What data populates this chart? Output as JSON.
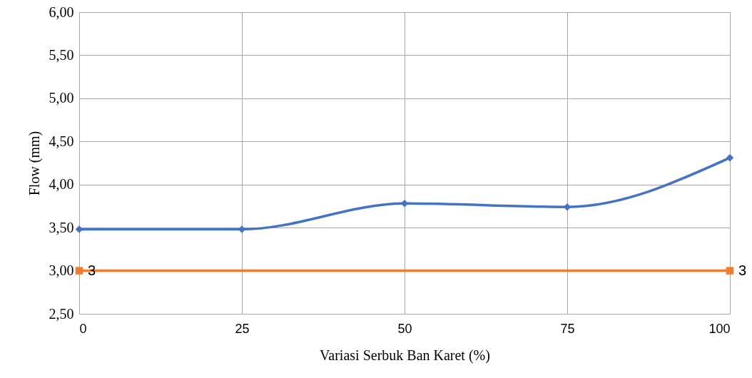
{
  "chart_data": {
    "type": "line",
    "xlabel": "Variasi Serbuk Ban Karet (%)",
    "ylabel": "Flow (mm)",
    "xlim": [
      0,
      100
    ],
    "xticks": [
      0,
      25,
      50,
      75,
      100
    ],
    "ylim": [
      2.5,
      6
    ],
    "yticks": [
      {
        "value": 2.5,
        "label": "2,50"
      },
      {
        "value": 3,
        "label": "3,00"
      },
      {
        "value": 3.5,
        "label": "3,50"
      },
      {
        "value": 4,
        "label": "4,00"
      },
      {
        "value": 4.5,
        "label": "4,50"
      },
      {
        "value": 5,
        "label": "5,00"
      },
      {
        "value": 5.5,
        "label": "5,50"
      },
      {
        "value": 6,
        "label": "6,00"
      }
    ],
    "grid": true,
    "series": [
      {
        "color": "#4472c4",
        "marker": "diamond",
        "x": [
          0,
          25,
          50,
          75,
          100
        ],
        "values": [
          3.48,
          3.48,
          3.78,
          3.74,
          4.31
        ]
      },
      {
        "color": "#ed7d31",
        "marker": "square",
        "x": [
          0,
          100
        ],
        "values": [
          3,
          3
        ],
        "value_labels": [
          "3",
          "3"
        ]
      }
    ]
  }
}
